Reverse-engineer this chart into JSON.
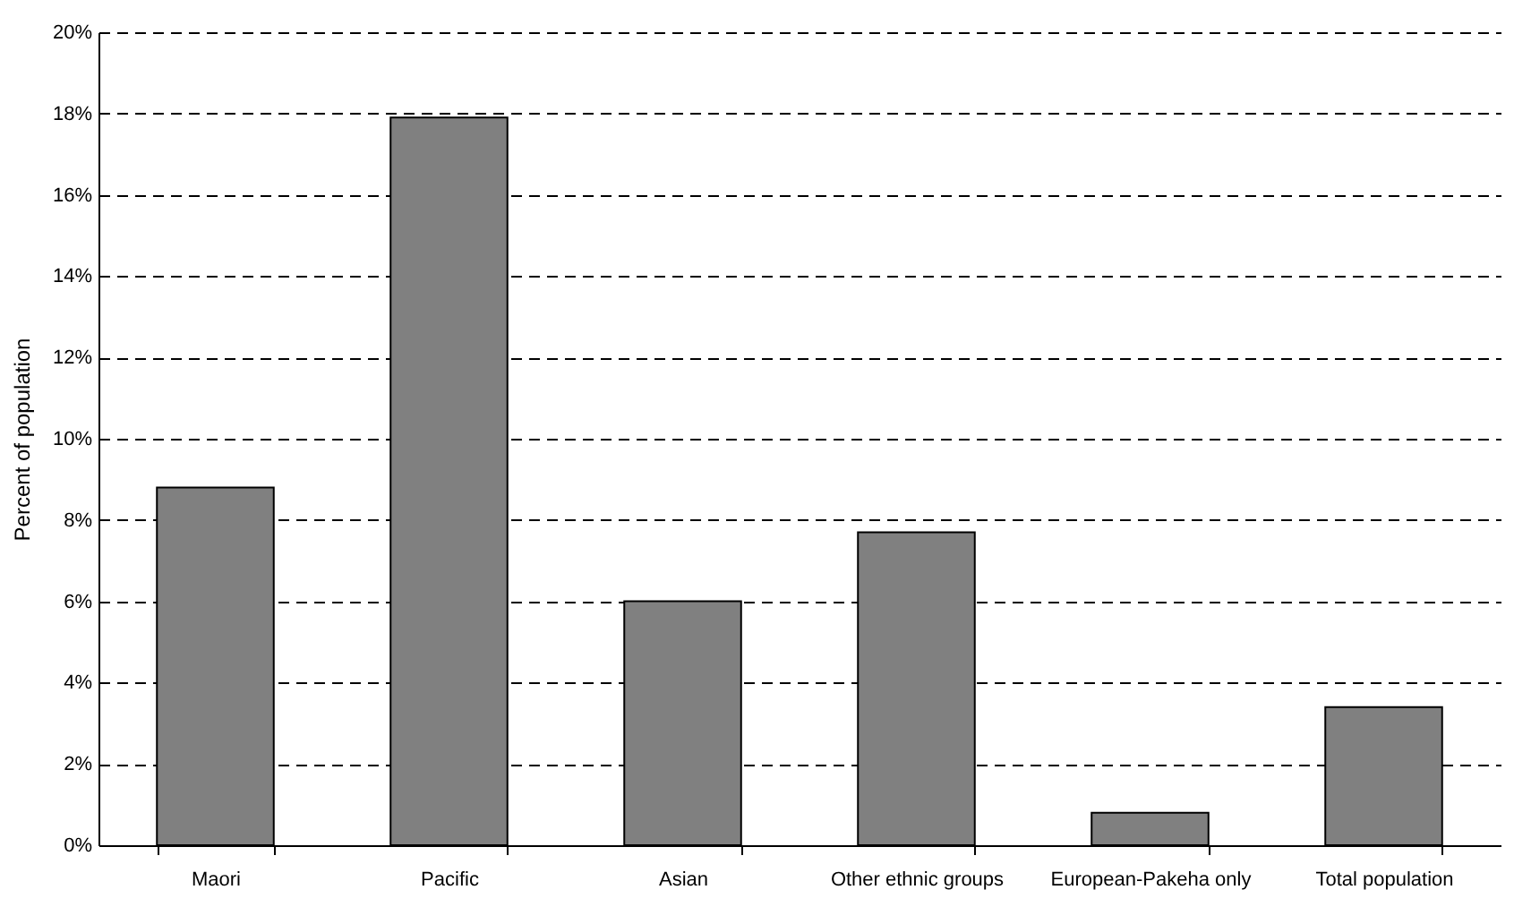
{
  "chart_data": {
    "type": "bar",
    "ylabel": "Percent of population",
    "categories": [
      "Maori",
      "Pacific",
      "Asian",
      "Other ethnic groups",
      "European-Pakeha only",
      "Total population"
    ],
    "values": [
      8.8,
      17.9,
      6.0,
      7.7,
      0.8,
      3.4
    ],
    "color": "#808080",
    "ylim": [
      0,
      20
    ],
    "yticks": [
      {
        "value": 0,
        "label": "0%"
      },
      {
        "value": 2,
        "label": "2%"
      },
      {
        "value": 4,
        "label": "4%"
      },
      {
        "value": 6,
        "label": "6%"
      },
      {
        "value": 8,
        "label": "8%"
      },
      {
        "value": 10,
        "label": "10%"
      },
      {
        "value": 12,
        "label": "12%"
      },
      {
        "value": 14,
        "label": "14%"
      },
      {
        "value": 16,
        "label": "16%"
      },
      {
        "value": 18,
        "label": "18%"
      },
      {
        "value": 20,
        "label": "20%"
      }
    ],
    "grid": "y",
    "line_style": "dashed"
  }
}
